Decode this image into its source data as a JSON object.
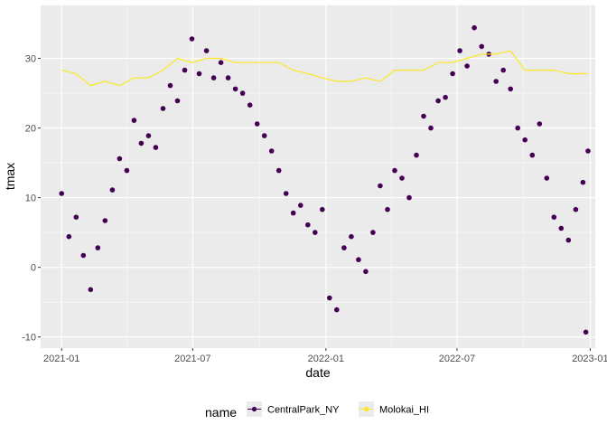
{
  "chart_data": {
    "type": "scatter",
    "xlabel": "date",
    "ylabel": "tmax",
    "x_tick_labels": [
      "2021-01",
      "2021-07",
      "2022-01",
      "2022-07",
      "2023-01"
    ],
    "x_ticks": [
      "2021-01-01",
      "2021-07-01",
      "2022-01-01",
      "2022-07-01",
      "2023-01-01"
    ],
    "y_ticks": [
      -10,
      0,
      10,
      20,
      30
    ],
    "xlim": [
      "2020-12-03",
      "2023-01-08"
    ],
    "ylim": [
      -11.6,
      37.6
    ],
    "grid": true,
    "panel_background": "#ebebeb",
    "legend": {
      "title": "name",
      "position": "bottom",
      "entries": [
        {
          "label": "CentralPark_NY",
          "color": "#440154",
          "geom": "point+line"
        },
        {
          "label": "Molokai_HI",
          "color": "#fde725",
          "geom": "point+line"
        }
      ]
    },
    "series": [
      {
        "name": "CentralPark_NY",
        "geom": "point",
        "color": "#440154",
        "x": [
          "2021-01-01",
          "2021-01-11",
          "2021-01-21",
          "2021-01-31",
          "2021-02-10",
          "2021-02-20",
          "2021-03-02",
          "2021-03-12",
          "2021-03-22",
          "2021-04-01",
          "2021-04-11",
          "2021-04-21",
          "2021-05-01",
          "2021-05-11",
          "2021-05-21",
          "2021-05-31",
          "2021-06-10",
          "2021-06-20",
          "2021-06-30",
          "2021-07-10",
          "2021-07-20",
          "2021-07-30",
          "2021-08-09",
          "2021-08-19",
          "2021-08-29",
          "2021-09-08",
          "2021-09-18",
          "2021-09-28",
          "2021-10-08",
          "2021-10-18",
          "2021-10-28",
          "2021-11-07",
          "2021-11-17",
          "2021-11-27",
          "2021-12-07",
          "2021-12-17",
          "2021-12-27",
          "2022-01-06",
          "2022-01-16",
          "2022-01-26",
          "2022-02-05",
          "2022-02-15",
          "2022-02-25",
          "2022-03-07",
          "2022-03-17",
          "2022-03-27",
          "2022-04-06",
          "2022-04-16",
          "2022-04-26",
          "2022-05-06",
          "2022-05-16",
          "2022-05-26",
          "2022-06-05",
          "2022-06-15",
          "2022-06-25",
          "2022-07-05",
          "2022-07-15",
          "2022-07-25",
          "2022-08-04",
          "2022-08-14",
          "2022-08-24",
          "2022-09-03",
          "2022-09-13",
          "2022-09-23",
          "2022-10-03",
          "2022-10-13",
          "2022-10-23",
          "2022-11-02",
          "2022-11-12",
          "2022-11-22",
          "2022-12-02",
          "2022-12-12",
          "2022-12-22",
          "2022-12-26",
          "2022-12-29"
        ],
        "y": [
          10.6,
          4.4,
          7.2,
          1.7,
          -3.2,
          2.8,
          6.7,
          11.1,
          15.6,
          13.9,
          21.1,
          17.8,
          18.9,
          17.2,
          22.8,
          26.1,
          23.9,
          28.3,
          32.8,
          27.8,
          31.1,
          27.2,
          29.4,
          27.2,
          25.6,
          25.0,
          23.3,
          20.6,
          18.9,
          16.7,
          13.9,
          10.6,
          7.8,
          8.9,
          6.1,
          5.0,
          8.3,
          -4.4,
          -6.1,
          2.8,
          4.4,
          1.1,
          -0.6,
          5.0,
          11.7,
          8.3,
          13.9,
          12.8,
          10.0,
          16.1,
          21.7,
          20.0,
          23.9,
          24.4,
          27.8,
          31.1,
          28.9,
          34.4,
          31.7,
          30.6,
          26.7,
          28.3,
          25.6,
          20.0,
          18.3,
          16.1,
          20.6,
          12.8,
          7.2,
          5.6,
          3.9,
          8.3,
          12.2,
          -9.3,
          16.7
        ]
      },
      {
        "name": "Molokai_HI",
        "geom": "line",
        "color": "#fde725",
        "x": [
          "2021-01-01",
          "2021-01-21",
          "2021-02-10",
          "2021-03-02",
          "2021-03-22",
          "2021-04-11",
          "2021-05-01",
          "2021-05-21",
          "2021-06-10",
          "2021-06-30",
          "2021-07-20",
          "2021-08-09",
          "2021-08-29",
          "2021-09-18",
          "2021-10-08",
          "2021-10-28",
          "2021-11-17",
          "2021-12-07",
          "2021-12-27",
          "2022-01-16",
          "2022-02-05",
          "2022-02-25",
          "2022-03-17",
          "2022-04-06",
          "2022-04-26",
          "2022-05-16",
          "2022-06-05",
          "2022-06-25",
          "2022-07-15",
          "2022-08-04",
          "2022-08-24",
          "2022-09-13",
          "2022-10-03",
          "2022-10-23",
          "2022-11-12",
          "2022-12-02",
          "2022-12-22",
          "2022-12-29"
        ],
        "y": [
          28.3,
          27.8,
          26.1,
          26.7,
          26.1,
          27.2,
          27.2,
          28.3,
          30.0,
          29.4,
          30.0,
          30.0,
          29.4,
          29.4,
          29.4,
          29.4,
          28.3,
          27.8,
          27.2,
          26.7,
          26.7,
          27.2,
          26.7,
          28.3,
          28.3,
          28.3,
          29.4,
          29.4,
          30.0,
          30.6,
          30.6,
          31.1,
          28.3,
          28.3,
          28.3,
          27.8,
          27.8,
          27.8
        ]
      }
    ]
  }
}
